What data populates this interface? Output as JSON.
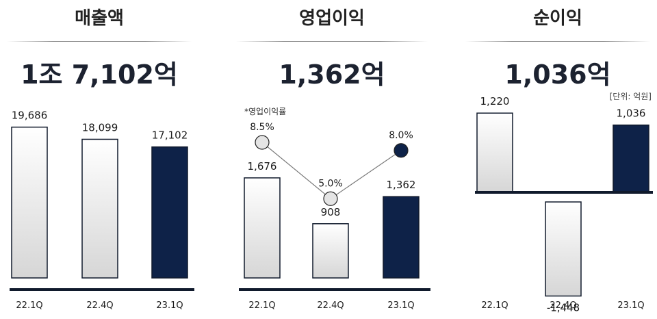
{
  "chart_data": [
    {
      "type": "bar",
      "title": "매출액",
      "headline": "1조 7,102억",
      "categories": [
        "22.1Q",
        "22.4Q",
        "23.1Q"
      ],
      "values": [
        19686,
        18099,
        17102
      ],
      "value_labels": [
        "19,686",
        "18,099",
        "17,102"
      ],
      "highlight_index": 2
    },
    {
      "type": "bar",
      "title": "영업이익",
      "headline": "1,362억",
      "categories": [
        "22.1Q",
        "22.4Q",
        "23.1Q"
      ],
      "values": [
        1676,
        908,
        1362
      ],
      "value_labels": [
        "1,676",
        "908",
        "1,362"
      ],
      "highlight_index": 2,
      "margin_note": "*영업이익률",
      "margin_values": [
        8.5,
        5.0,
        8.0
      ],
      "margin_labels": [
        "8.5%",
        "5.0%",
        "8.0%"
      ]
    },
    {
      "type": "bar",
      "title": "순이익",
      "headline": "1,036억",
      "unit_note": "[단위: 억원]",
      "categories": [
        "22.1Q",
        "22.4Q",
        "23.1Q"
      ],
      "values": [
        1220,
        -1448,
        1036
      ],
      "value_labels": [
        "1,220",
        "-1,448",
        "1,036"
      ],
      "highlight_index": 2
    }
  ],
  "colors": {
    "highlight": "#0e2248",
    "bar_fill_top": "#ffffff",
    "bar_fill_bottom": "#d6d6d6",
    "baseline": "#101a2c",
    "marker_light": "#e4e4e4",
    "marker_dark": "#0e2248"
  }
}
